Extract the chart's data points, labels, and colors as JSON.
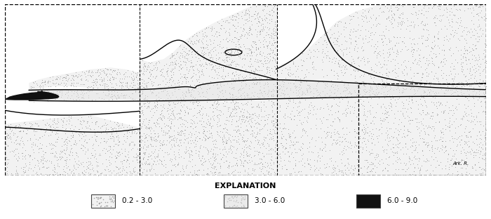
{
  "figsize": [
    7.0,
    3.12
  ],
  "dpi": 100,
  "background_color": "#ffffff",
  "legend_title": "EXPLANATION",
  "legend_items": [
    {
      "label": "0.2 - 3.0",
      "facecolor": "#d8d8d8",
      "edgecolor": "#666666"
    },
    {
      "label": "3.0 - 6.0",
      "facecolor": "#e8e8e8",
      "edgecolor": "#666666"
    },
    {
      "label": "6.0 - 9.0",
      "facecolor": "#111111",
      "edgecolor": "#000000"
    }
  ],
  "annotation": "Ark. R.",
  "dot_color_light": "#aaaaaa",
  "dot_color_medium": "#888888",
  "line_color": "#000000",
  "line_width": 1.0
}
